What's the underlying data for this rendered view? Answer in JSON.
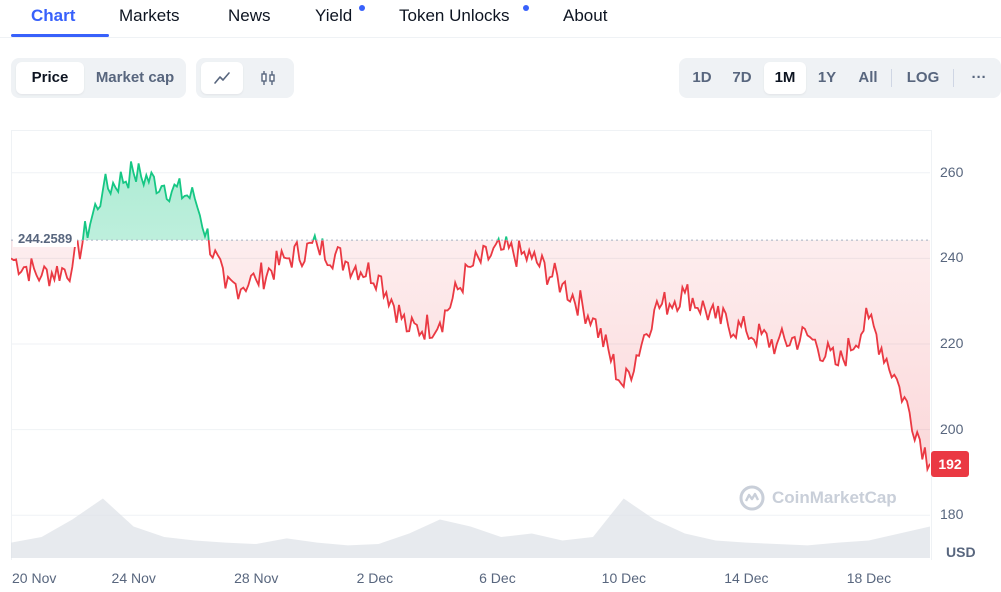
{
  "nav": {
    "tabs": [
      {
        "label": "Chart",
        "active": true
      },
      {
        "label": "Markets"
      },
      {
        "label": "News"
      },
      {
        "label": "Yield",
        "dot": true
      },
      {
        "label": "Token Unlocks",
        "dot": true
      },
      {
        "label": "About"
      }
    ]
  },
  "toolbar": {
    "metric": {
      "price_label": "Price",
      "market_cap_label": "Market cap",
      "selected": "Price"
    },
    "chart_style": {
      "line_icon": "line-chart-icon",
      "candle_icon": "candlestick-icon",
      "selected": "line"
    },
    "ranges": [
      "1D",
      "7D",
      "1M",
      "1Y",
      "All"
    ],
    "selected_range": "1M",
    "log_label": "LOG",
    "more_label": "···"
  },
  "chart_data": {
    "type": "line",
    "x": [
      "20 Nov",
      "21 Nov",
      "22 Nov",
      "23 Nov",
      "24 Nov",
      "25 Nov",
      "26 Nov",
      "27 Nov",
      "28 Nov",
      "29 Nov",
      "30 Nov",
      "1 Dec",
      "2 Dec",
      "3 Dec",
      "4 Dec",
      "5 Dec",
      "6 Dec",
      "7 Dec",
      "8 Dec",
      "9 Dec",
      "10 Dec",
      "11 Dec",
      "12 Dec",
      "13 Dec",
      "14 Dec",
      "15 Dec",
      "16 Dec",
      "17 Dec",
      "18 Dec",
      "19 Dec",
      "20 Dec"
    ],
    "values": [
      240,
      236,
      238,
      256,
      260,
      257,
      254,
      233,
      235,
      240,
      243,
      239,
      236,
      223,
      225,
      238,
      242,
      240,
      234,
      226,
      210,
      228,
      232,
      226,
      223,
      220,
      222,
      215,
      226,
      210,
      192
    ],
    "volume": [
      0.22,
      0.3,
      0.55,
      0.85,
      0.45,
      0.3,
      0.25,
      0.22,
      0.2,
      0.28,
      0.22,
      0.18,
      0.2,
      0.35,
      0.55,
      0.45,
      0.3,
      0.35,
      0.25,
      0.3,
      0.85,
      0.55,
      0.35,
      0.25,
      0.22,
      0.2,
      0.18,
      0.22,
      0.25,
      0.35,
      0.45
    ],
    "reference_value": 244.2589,
    "reference_label": "244.2589",
    "current_value": 192,
    "current_label": "192",
    "ylim": [
      170,
      270
    ],
    "yticks": [
      "260",
      "240",
      "220",
      "200",
      "180"
    ],
    "ytick_values": [
      260,
      240,
      220,
      200,
      180
    ],
    "xticks": [
      {
        "label": "20 Nov",
        "index": 0
      },
      {
        "label": "24 Nov",
        "index": 4
      },
      {
        "label": "28 Nov",
        "index": 8
      },
      {
        "label": "2 Dec",
        "index": 12
      },
      {
        "label": "6 Dec",
        "index": 16
      },
      {
        "label": "10 Dec",
        "index": 20
      },
      {
        "label": "14 Dec",
        "index": 24
      },
      {
        "label": "18 Dec",
        "index": 28
      }
    ],
    "unit_label": "USD",
    "colors": {
      "up": "#16c784",
      "down": "#ea3943",
      "reference": "#a6b0c3",
      "volume": "#dde1e7"
    }
  },
  "watermark": {
    "text": "CoinMarketCap",
    "icon": "coinmarketcap-logo-icon"
  }
}
